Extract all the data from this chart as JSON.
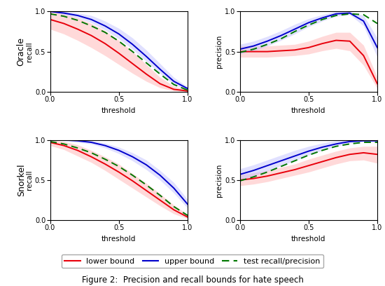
{
  "figure_title": "Figure 2:  Precision and recall bounds for hate speech",
  "row_labels": [
    "Oracle",
    "Snorkel"
  ],
  "col_labels": [
    "recall",
    "precision"
  ],
  "legend_entries": [
    "lower bound",
    "upper bound",
    "test recall/precision"
  ],
  "x_label": "threshold",
  "ylim": [
    0.0,
    1.0
  ],
  "xlim": [
    0.0,
    1.0
  ],
  "oracle_recall": {
    "lb_mean": [
      0.9,
      0.85,
      0.78,
      0.7,
      0.6,
      0.48,
      0.35,
      0.22,
      0.1,
      0.03,
      0.01
    ],
    "lb_lo": [
      0.78,
      0.72,
      0.64,
      0.55,
      0.45,
      0.34,
      0.23,
      0.13,
      0.05,
      0.01,
      0.0
    ],
    "lb_hi": [
      1.0,
      0.97,
      0.92,
      0.85,
      0.76,
      0.64,
      0.5,
      0.34,
      0.18,
      0.07,
      0.02
    ],
    "ub_mean": [
      1.0,
      0.98,
      0.95,
      0.9,
      0.82,
      0.72,
      0.59,
      0.44,
      0.28,
      0.13,
      0.04
    ],
    "ub_lo": [
      1.0,
      0.96,
      0.92,
      0.86,
      0.77,
      0.66,
      0.53,
      0.38,
      0.23,
      0.09,
      0.02
    ],
    "ub_hi": [
      1.0,
      1.0,
      0.98,
      0.95,
      0.88,
      0.79,
      0.67,
      0.52,
      0.35,
      0.18,
      0.06
    ],
    "test_mean": [
      0.97,
      0.94,
      0.89,
      0.82,
      0.74,
      0.63,
      0.5,
      0.36,
      0.22,
      0.09,
      0.02
    ]
  },
  "oracle_precision": {
    "lb_mean": [
      0.5,
      0.5,
      0.5,
      0.51,
      0.52,
      0.55,
      0.6,
      0.64,
      0.63,
      0.45,
      0.1
    ],
    "lb_lo": [
      0.43,
      0.43,
      0.43,
      0.44,
      0.45,
      0.47,
      0.51,
      0.54,
      0.51,
      0.33,
      0.04
    ],
    "lb_hi": [
      0.57,
      0.57,
      0.57,
      0.58,
      0.59,
      0.63,
      0.69,
      0.74,
      0.74,
      0.58,
      0.18
    ],
    "ub_mean": [
      0.53,
      0.57,
      0.63,
      0.7,
      0.78,
      0.86,
      0.92,
      0.97,
      0.98,
      0.88,
      0.55
    ],
    "ub_lo": [
      0.47,
      0.51,
      0.57,
      0.64,
      0.72,
      0.81,
      0.88,
      0.94,
      0.96,
      0.82,
      0.43
    ],
    "ub_hi": [
      0.59,
      0.63,
      0.69,
      0.76,
      0.84,
      0.91,
      0.96,
      1.0,
      1.0,
      0.95,
      0.67
    ],
    "test_mean": [
      0.49,
      0.53,
      0.59,
      0.66,
      0.75,
      0.83,
      0.9,
      0.95,
      0.97,
      0.96,
      0.85
    ]
  },
  "snorkel_recall": {
    "lb_mean": [
      0.97,
      0.93,
      0.87,
      0.79,
      0.7,
      0.6,
      0.49,
      0.37,
      0.25,
      0.13,
      0.04
    ],
    "lb_lo": [
      0.93,
      0.88,
      0.8,
      0.72,
      0.62,
      0.51,
      0.4,
      0.29,
      0.18,
      0.08,
      0.02
    ],
    "lb_hi": [
      1.0,
      0.98,
      0.94,
      0.87,
      0.79,
      0.7,
      0.58,
      0.46,
      0.33,
      0.19,
      0.07
    ],
    "ub_mean": [
      1.0,
      1.0,
      0.99,
      0.97,
      0.93,
      0.87,
      0.79,
      0.69,
      0.56,
      0.4,
      0.2
    ],
    "ub_lo": [
      1.0,
      0.99,
      0.97,
      0.95,
      0.9,
      0.83,
      0.74,
      0.63,
      0.5,
      0.34,
      0.15
    ],
    "ub_hi": [
      1.0,
      1.0,
      1.0,
      0.99,
      0.96,
      0.91,
      0.84,
      0.75,
      0.62,
      0.47,
      0.26
    ],
    "test_mean": [
      0.98,
      0.95,
      0.9,
      0.84,
      0.76,
      0.67,
      0.56,
      0.44,
      0.31,
      0.17,
      0.06
    ]
  },
  "snorkel_precision": {
    "lb_mean": [
      0.5,
      0.52,
      0.55,
      0.59,
      0.63,
      0.68,
      0.73,
      0.78,
      0.82,
      0.84,
      0.82
    ],
    "lb_lo": [
      0.43,
      0.45,
      0.48,
      0.52,
      0.56,
      0.6,
      0.65,
      0.7,
      0.74,
      0.75,
      0.71
    ],
    "lb_hi": [
      0.57,
      0.59,
      0.62,
      0.66,
      0.7,
      0.76,
      0.81,
      0.86,
      0.9,
      0.92,
      0.92
    ],
    "ub_mean": [
      0.57,
      0.62,
      0.68,
      0.74,
      0.8,
      0.86,
      0.91,
      0.95,
      0.98,
      0.99,
      0.99
    ],
    "ub_lo": [
      0.5,
      0.55,
      0.61,
      0.68,
      0.74,
      0.81,
      0.87,
      0.92,
      0.96,
      0.98,
      0.97
    ],
    "ub_hi": [
      0.64,
      0.69,
      0.75,
      0.81,
      0.87,
      0.92,
      0.96,
      0.99,
      1.0,
      1.0,
      1.0
    ],
    "test_mean": [
      0.49,
      0.54,
      0.6,
      0.67,
      0.74,
      0.81,
      0.87,
      0.92,
      0.95,
      0.97,
      0.97
    ]
  },
  "lb_color": "#e8000b",
  "ub_color": "#0000cc",
  "test_color": "#007700",
  "lb_fill": "#ffbbbb",
  "ub_fill": "#bbbbff",
  "test_fill": "#bbddbb"
}
